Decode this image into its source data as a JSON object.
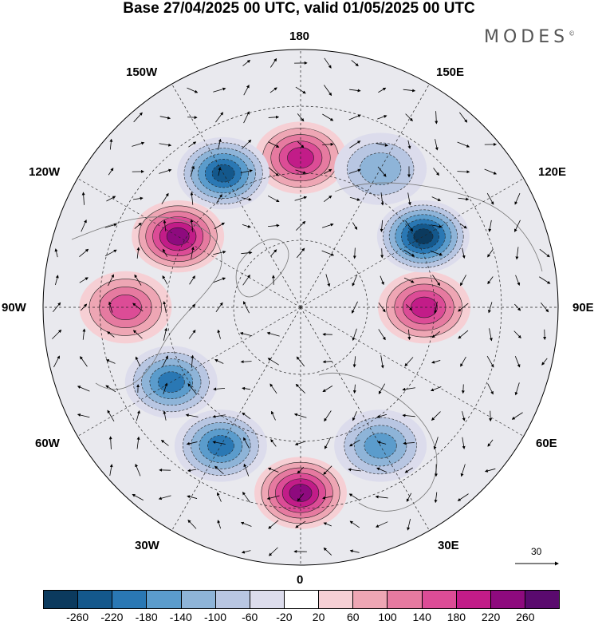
{
  "title": "Base 27/04/2025 00 UTC, valid 01/05/2025 00 UTC",
  "brand": "MODES",
  "brand_mark": "©",
  "longitude_labels": {
    "top": "180",
    "bottom": "0",
    "left": "90W",
    "right": "90E",
    "upper_left_1": "150W",
    "upper_left_2": "120W",
    "upper_right_1": "150E",
    "upper_right_2": "120E",
    "lower_left_1": "60W",
    "lower_left_2": "30W",
    "lower_right_1": "60E",
    "lower_right_2": "30E"
  },
  "vector_scale_label": "30",
  "colorbar": {
    "colors": [
      "#0b3a5e",
      "#14588c",
      "#2a78b4",
      "#5b9ccc",
      "#8eb4d8",
      "#b8c6e2",
      "#dcdcec",
      "#ffffff",
      "#f6cfd4",
      "#eea6b4",
      "#e67aa0",
      "#dc4c96",
      "#c21c88",
      "#8e0a7e",
      "#5a0a6e"
    ],
    "ticks": [
      "-260",
      "-220",
      "-180",
      "-140",
      "-100",
      "-60",
      "-20",
      "20",
      "60",
      "100",
      "140",
      "180",
      "220",
      "260"
    ]
  },
  "anomaly_centers": [
    {
      "lon_dir": "180",
      "sign": "positive",
      "level": 180
    },
    {
      "lon_dir": "150W",
      "sign": "negative",
      "level": -220
    },
    {
      "lon_dir": "120W",
      "sign": "positive",
      "level": 220
    },
    {
      "lon_dir": "90W",
      "sign": "positive",
      "level": 140
    },
    {
      "lon_dir": "60W",
      "sign": "negative",
      "level": -180
    },
    {
      "lon_dir": "30W",
      "sign": "negative",
      "level": -180
    },
    {
      "lon_dir": "0",
      "sign": "positive",
      "level": 220
    },
    {
      "lon_dir": "30E",
      "sign": "negative",
      "level": -140
    },
    {
      "lon_dir": "90E",
      "sign": "positive",
      "level": 180
    },
    {
      "lon_dir": "120E",
      "sign": "negative",
      "level": -260
    },
    {
      "lon_dir": "150E",
      "sign": "negative",
      "level": -100
    }
  ]
}
